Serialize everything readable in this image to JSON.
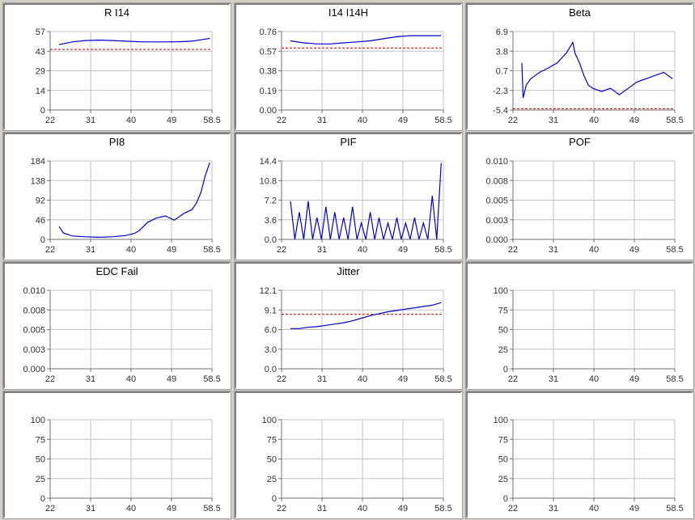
{
  "colors": {
    "series": "#0000cc",
    "threshold": "#cc0000",
    "grid": "#c0c0c0"
  },
  "chart_data": [
    {
      "type": "line",
      "title": "R I14",
      "xticks": [
        "22",
        "31",
        "40",
        "49",
        "58.5"
      ],
      "xlim": [
        22,
        58.5
      ],
      "yticks": [
        "0",
        "14",
        "29",
        "43",
        "57"
      ],
      "ylim": [
        0,
        57
      ],
      "threshold": 44,
      "series": [
        {
          "x": [
            24,
            27,
            30,
            33,
            36,
            39,
            42,
            45,
            48,
            51,
            54,
            56,
            58
          ],
          "values": [
            47.5,
            49.5,
            50.5,
            50.8,
            50.5,
            50.0,
            49.6,
            49.5,
            49.5,
            49.6,
            50.0,
            51.0,
            52.0
          ]
        }
      ]
    },
    {
      "type": "line",
      "title": "I14 I14H",
      "xticks": [
        "22",
        "31",
        "40",
        "49",
        "58.5"
      ],
      "xlim": [
        22,
        58.5
      ],
      "yticks": [
        "0.00",
        "0.19",
        "0.38",
        "0.57",
        "0.76"
      ],
      "ylim": [
        0,
        0.76
      ],
      "threshold": 0.6,
      "series": [
        {
          "x": [
            24,
            27,
            30,
            33,
            36,
            39,
            42,
            45,
            48,
            51,
            54,
            56,
            58
          ],
          "values": [
            0.67,
            0.65,
            0.64,
            0.64,
            0.65,
            0.66,
            0.67,
            0.69,
            0.71,
            0.72,
            0.72,
            0.72,
            0.72
          ]
        }
      ]
    },
    {
      "type": "line",
      "title": "Beta",
      "xticks": [
        "22",
        "31",
        "40",
        "49",
        "58.5"
      ],
      "xlim": [
        22,
        58.5
      ],
      "yticks": [
        "-5.4",
        "-2.3",
        "0.7",
        "3.8",
        "6.9"
      ],
      "ylim": [
        -5.4,
        6.9
      ],
      "threshold": -5.2,
      "series": [
        {
          "x": [
            24,
            24.3,
            25,
            26,
            28,
            30,
            32,
            34,
            35.5,
            36,
            37,
            38,
            39,
            40,
            42,
            44,
            46,
            48,
            50,
            52,
            54,
            56,
            58
          ],
          "values": [
            2.0,
            -3.5,
            -1.5,
            -0.5,
            0.5,
            1.2,
            2.0,
            3.5,
            5.2,
            3.5,
            2.0,
            0.0,
            -1.5,
            -2.0,
            -2.5,
            -2.0,
            -3.0,
            -2.0,
            -1.0,
            -0.5,
            0.0,
            0.5,
            -0.5
          ]
        }
      ]
    },
    {
      "type": "line",
      "title": "PI8",
      "xticks": [
        "22",
        "31",
        "40",
        "49",
        "58.5"
      ],
      "xlim": [
        22,
        58.5
      ],
      "yticks": [
        "0",
        "46",
        "92",
        "138",
        "184"
      ],
      "ylim": [
        0,
        184
      ],
      "series": [
        {
          "x": [
            24,
            25,
            27,
            30,
            33,
            36,
            39,
            41,
            42,
            43,
            44,
            46,
            48,
            50,
            52,
            54,
            55,
            56,
            57,
            58
          ],
          "values": [
            30,
            15,
            8,
            6,
            5,
            6,
            9,
            14,
            20,
            30,
            40,
            50,
            55,
            45,
            60,
            70,
            85,
            110,
            150,
            180
          ]
        }
      ]
    },
    {
      "type": "line",
      "title": "PIF",
      "xticks": [
        "22",
        "31",
        "40",
        "49",
        "58.5"
      ],
      "xlim": [
        22,
        58.5
      ],
      "yticks": [
        "0.0",
        "3.6",
        "7.2",
        "10.8",
        "14.4"
      ],
      "ylim": [
        0,
        14.4
      ],
      "series": [
        {
          "x": [
            24,
            25,
            26,
            27,
            28,
            29,
            30,
            31,
            32,
            33,
            34,
            35,
            36,
            37,
            38,
            39,
            40,
            41,
            42,
            43,
            44,
            45,
            46,
            47,
            48,
            49,
            50,
            51,
            52,
            53,
            54,
            55,
            56,
            57,
            58
          ],
          "values": [
            7,
            0,
            5,
            0,
            7,
            0,
            4,
            0,
            6,
            0,
            5,
            0,
            4,
            0,
            6,
            0,
            3,
            0,
            5,
            0,
            4,
            0,
            3,
            0,
            4,
            0,
            3,
            0,
            4,
            0,
            3,
            0,
            8,
            0,
            14
          ]
        }
      ]
    },
    {
      "type": "line",
      "title": "POF",
      "xticks": [
        "22",
        "31",
        "40",
        "49",
        "58.5"
      ],
      "xlim": [
        22,
        58.5
      ],
      "yticks": [
        "0.000",
        "0.003",
        "0.005",
        "0.008",
        "0.010"
      ],
      "ylim": [
        0,
        0.01
      ],
      "series": []
    },
    {
      "type": "line",
      "title": "EDC Fail",
      "xticks": [
        "22",
        "31",
        "40",
        "49",
        "58.5"
      ],
      "xlim": [
        22,
        58.5
      ],
      "yticks": [
        "0.000",
        "0.003",
        "0.005",
        "0.008",
        "0.010"
      ],
      "ylim": [
        0,
        0.01
      ],
      "series": []
    },
    {
      "type": "line",
      "title": "Jitter",
      "xticks": [
        "22",
        "31",
        "40",
        "49",
        "58.5"
      ],
      "xlim": [
        22,
        58.5
      ],
      "yticks": [
        "0.0",
        "3.0",
        "6.0",
        "9.1",
        "12.1"
      ],
      "ylim": [
        0,
        12.1
      ],
      "threshold": 8.4,
      "series": [
        {
          "x": [
            24,
            26,
            28,
            30,
            32,
            34,
            36,
            38,
            40,
            42,
            44,
            46,
            48,
            50,
            52,
            54,
            56,
            58
          ],
          "values": [
            6.2,
            6.2,
            6.4,
            6.5,
            6.7,
            6.9,
            7.1,
            7.4,
            7.8,
            8.2,
            8.5,
            8.8,
            9.0,
            9.2,
            9.4,
            9.6,
            9.8,
            10.2
          ]
        }
      ]
    },
    {
      "type": "line",
      "title": "",
      "xticks": [
        "22",
        "31",
        "40",
        "49",
        "58.5"
      ],
      "xlim": [
        22,
        58.5
      ],
      "yticks": [
        "0",
        "25",
        "50",
        "75",
        "100"
      ],
      "ylim": [
        0,
        100
      ],
      "series": []
    },
    {
      "type": "line",
      "title": "",
      "xticks": [
        "22",
        "31",
        "40",
        "49",
        "58.5"
      ],
      "xlim": [
        22,
        58.5
      ],
      "yticks": [
        "0",
        "25",
        "50",
        "75",
        "100"
      ],
      "ylim": [
        0,
        100
      ],
      "series": []
    },
    {
      "type": "line",
      "title": "",
      "xticks": [
        "22",
        "31",
        "40",
        "49",
        "58.5"
      ],
      "xlim": [
        22,
        58.5
      ],
      "yticks": [
        "0",
        "25",
        "50",
        "75",
        "100"
      ],
      "ylim": [
        0,
        100
      ],
      "series": []
    },
    {
      "type": "line",
      "title": "",
      "xticks": [
        "22",
        "31",
        "40",
        "49",
        "58.5"
      ],
      "xlim": [
        22,
        58.5
      ],
      "yticks": [
        "0",
        "25",
        "50",
        "75",
        "100"
      ],
      "ylim": [
        0,
        100
      ],
      "series": []
    }
  ]
}
